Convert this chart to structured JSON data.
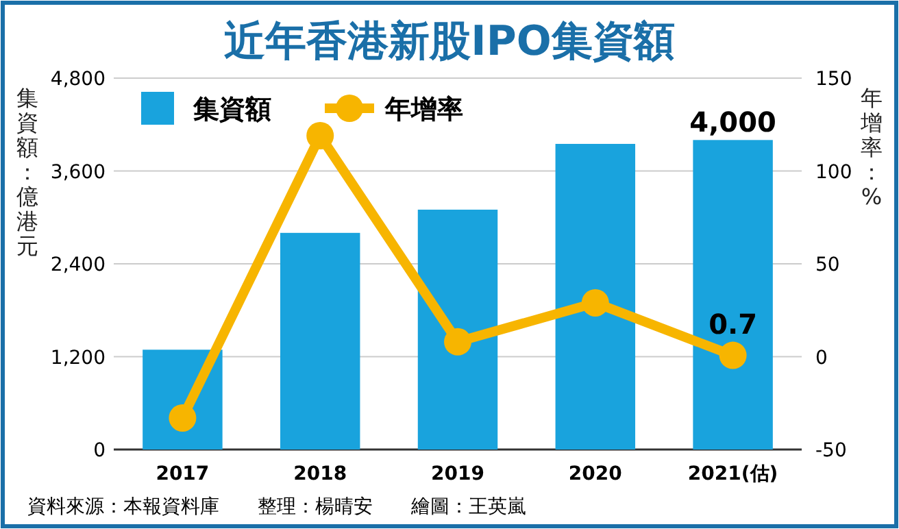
{
  "chart_data": {
    "type": "bar",
    "title": "近年香港新股IPO集資額",
    "categories": [
      "2017",
      "2018",
      "2019",
      "2020",
      "2021(估)"
    ],
    "series": [
      {
        "name": "集資額",
        "color": "#19a3dd",
        "values": [
          1290,
          2800,
          3100,
          3950,
          4000
        ],
        "value_labels": [
          null,
          null,
          null,
          null,
          "4,000"
        ]
      },
      {
        "name": "年增率",
        "type": "line",
        "axis": "y2",
        "color": "#f7b500",
        "marker": "circle",
        "values": [
          -33,
          119,
          8,
          29,
          0.7
        ],
        "value_labels": [
          null,
          null,
          null,
          null,
          "0.7"
        ]
      }
    ],
    "ylim": [
      0,
      4800
    ],
    "yticks": [
      0,
      {
        "value": 1200,
        "label": "1,200"
      },
      {
        "value": 2400,
        "label": "2,400"
      },
      {
        "value": 3600,
        "label": "3,600"
      },
      {
        "value": 4800,
        "label": "4,800"
      }
    ],
    "y2lim": [
      -50,
      150
    ],
    "y2ticks": [
      -50,
      0,
      50,
      100,
      150
    ],
    "ylabel": "集資額：億港元",
    "y2label": "年增率：%",
    "grid": "y",
    "legend": "top left",
    "annotations": [
      "資料來源：本報資料庫　　整理：楊晴安　　繪圖：王英嵐"
    ]
  }
}
